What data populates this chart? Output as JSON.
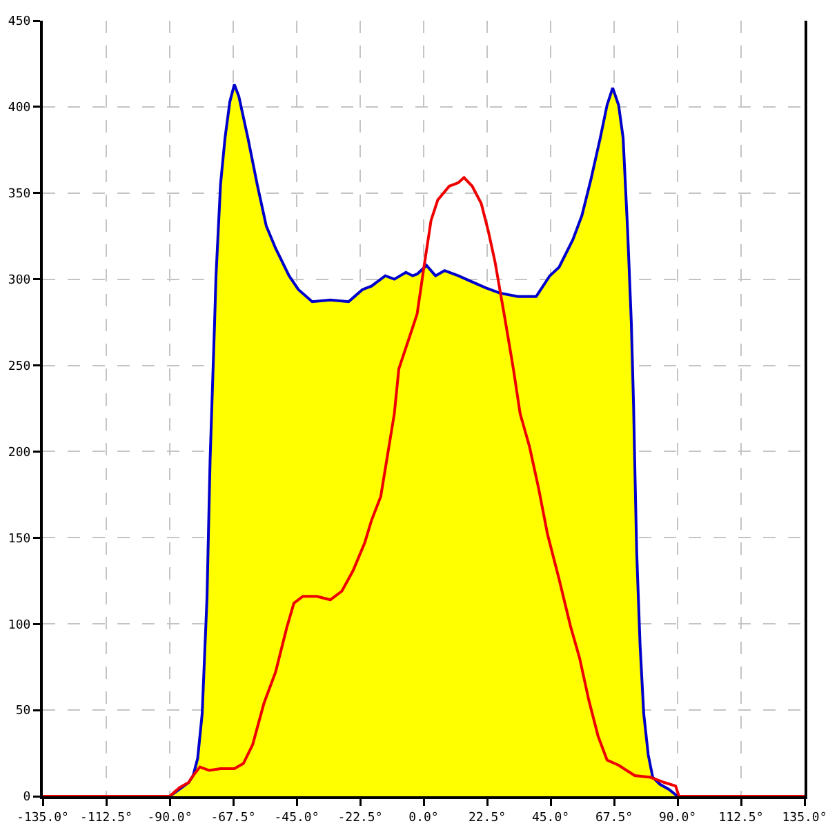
{
  "chart_data": {
    "type": "area",
    "xlim": [
      -135,
      135
    ],
    "xticks": [
      {
        "value": -135,
        "label": "-135.0°"
      },
      {
        "value": -112.5,
        "label": "-112.5°"
      },
      {
        "value": -90,
        "label": "-90.0°"
      },
      {
        "value": -67.5,
        "label": "-67.5°"
      },
      {
        "value": -45,
        "label": "-45.0°"
      },
      {
        "value": -22.5,
        "label": "-22.5°"
      },
      {
        "value": 0,
        "label": "0.0°"
      },
      {
        "value": 22.5,
        "label": "22.5°"
      },
      {
        "value": 45,
        "label": "45.0°"
      },
      {
        "value": 67.5,
        "label": "67.5°"
      },
      {
        "value": 90,
        "label": "90.0°"
      },
      {
        "value": 112.5,
        "label": "112.5°"
      },
      {
        "value": 135,
        "label": "135.0°"
      }
    ],
    "ylim": [
      0,
      450
    ],
    "yticks": [
      0,
      50,
      100,
      150,
      200,
      250,
      300,
      350,
      400,
      450
    ],
    "grid": true,
    "series": [
      {
        "type": "area",
        "color": "#ffff00",
        "x": [
          -90,
          -86.6,
          -83.3,
          -81.7,
          -80.1,
          -78.5,
          -76.8,
          -75.7,
          -74.9,
          -74.1,
          -73.6,
          -72.0,
          -70.4,
          -68.7,
          -67.1,
          -65.5,
          -62.3,
          -59.0,
          -55.8,
          -52.5,
          -47.7,
          -44.4,
          -39.5,
          -33.1,
          -26.6,
          -21.7,
          -18.5,
          -13.6,
          -10.4,
          -6.3,
          -3.9,
          -2.3,
          1.0,
          4.2,
          7.4,
          12.3,
          16.4,
          22.0,
          26.9,
          33.4,
          39.9,
          44.7,
          48.0,
          52.9,
          56.1,
          59.3,
          62.6,
          65.0,
          67.0,
          69.1,
          70.7,
          72.3,
          73.6,
          74.4,
          74.8,
          75.5,
          76.7,
          78.0,
          79.6,
          81.2,
          83.7,
          86.9,
          90
        ],
        "values": [
          0,
          4,
          8,
          12,
          22,
          48,
          115,
          195,
          235,
          275,
          302,
          355,
          382,
          403,
          413,
          406,
          382,
          355,
          331,
          318,
          302,
          294,
          287,
          288,
          287,
          294,
          296,
          302,
          300,
          304,
          302,
          303,
          308,
          302,
          305,
          302,
          299,
          295,
          292,
          290,
          290,
          302,
          307,
          323,
          337,
          358,
          382,
          401,
          411,
          401,
          382,
          328,
          275,
          227,
          195,
          142,
          88,
          48,
          24,
          11,
          7,
          4,
          0
        ]
      },
      {
        "type": "line",
        "color": "#ee0000",
        "x": [
          -135,
          -90,
          -86.6,
          -83.3,
          -81.7,
          -79.3,
          -76.0,
          -72.0,
          -67.1,
          -63.9,
          -60.6,
          -56.6,
          -52.5,
          -48.5,
          -46.0,
          -42.8,
          -37.9,
          -33.1,
          -29.0,
          -25.0,
          -20.9,
          -18.5,
          -15.2,
          -12.0,
          -10.4,
          -8.8,
          -3.9,
          -2.3,
          0.1,
          2.6,
          5.0,
          9.1,
          12.3,
          14.3,
          17.2,
          20.4,
          22.9,
          25.3,
          28.5,
          31.8,
          34.2,
          37.5,
          40.7,
          43.9,
          48.0,
          52.0,
          55.3,
          58.5,
          61.8,
          65.0,
          69.1,
          74.8,
          80.4,
          85.3,
          89.3,
          90.5,
          135
        ],
        "values": [
          0,
          0,
          5,
          8,
          12,
          17,
          15,
          16,
          16,
          19,
          30,
          54,
          72,
          98,
          112,
          116,
          116,
          114,
          119,
          131,
          147,
          160,
          174,
          206,
          222,
          248,
          272,
          280,
          307,
          334,
          346,
          354,
          356,
          359,
          354,
          344,
          328,
          310,
          280,
          248,
          222,
          203,
          179,
          152,
          126,
          99,
          80,
          56,
          35,
          21,
          18,
          12,
          11,
          8,
          6,
          0,
          0
        ]
      }
    ]
  }
}
